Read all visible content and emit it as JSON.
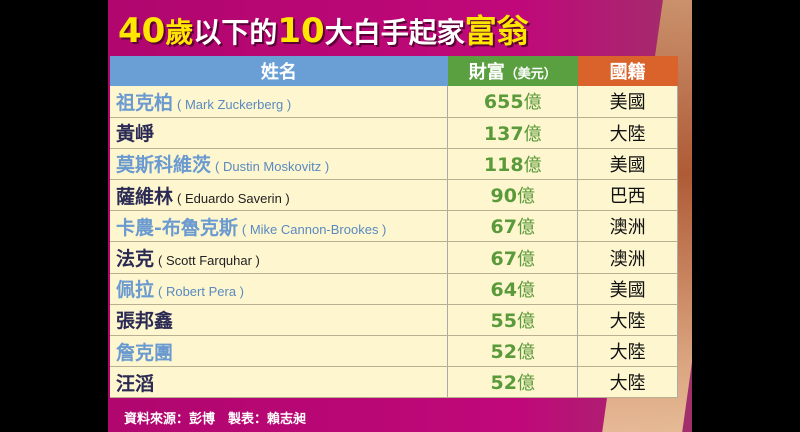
{
  "title": {
    "part1": "40",
    "part2": "歲",
    "part3": "以下的",
    "part4": "10",
    "part5": "大白手起家",
    "part6": "富翁"
  },
  "headers": {
    "name": "姓名",
    "wealth": "財富",
    "wealth_unit": "（美元）",
    "country": "國籍"
  },
  "rows": [
    {
      "zh": "祖克柏",
      "en": "( Mark Zuckerberg )",
      "amount": "655",
      "unit": "億",
      "country": "美國"
    },
    {
      "zh": "黃崢",
      "en": "",
      "amount": "137",
      "unit": "億",
      "country": "大陸"
    },
    {
      "zh": "莫斯科維茨",
      "en": "( Dustin Moskovitz )",
      "amount": "118",
      "unit": "億",
      "country": "美國"
    },
    {
      "zh": "薩維林",
      "en": "( Eduardo Saverin )",
      "amount": "90",
      "unit": "億",
      "country": "巴西"
    },
    {
      "zh": "卡農-布魯克斯",
      "en": "( Mike Cannon-Brookes )",
      "amount": "67",
      "unit": "億",
      "country": "澳洲"
    },
    {
      "zh": "法克",
      "en": "( Scott Farquhar )",
      "amount": "67",
      "unit": "億",
      "country": "澳洲"
    },
    {
      "zh": "佩拉",
      "en": "( Robert Pera )",
      "amount": "64",
      "unit": "億",
      "country": "美國"
    },
    {
      "zh": "張邦鑫",
      "en": "",
      "amount": "55",
      "unit": "億",
      "country": "大陸"
    },
    {
      "zh": "詹克團",
      "en": "",
      "amount": "52",
      "unit": "億",
      "country": "大陸"
    },
    {
      "zh": "汪滔",
      "en": "",
      "amount": "52",
      "unit": "億",
      "country": "大陸"
    }
  ],
  "footer": "資料來源：彭博　製表：賴志昶",
  "colors": {
    "background": "#c0087a",
    "header_name": "#6a9fd6",
    "header_wealth": "#5aa040",
    "header_country": "#d9632a",
    "row": "#fdf6cf",
    "title_accent": "#ffe600"
  }
}
